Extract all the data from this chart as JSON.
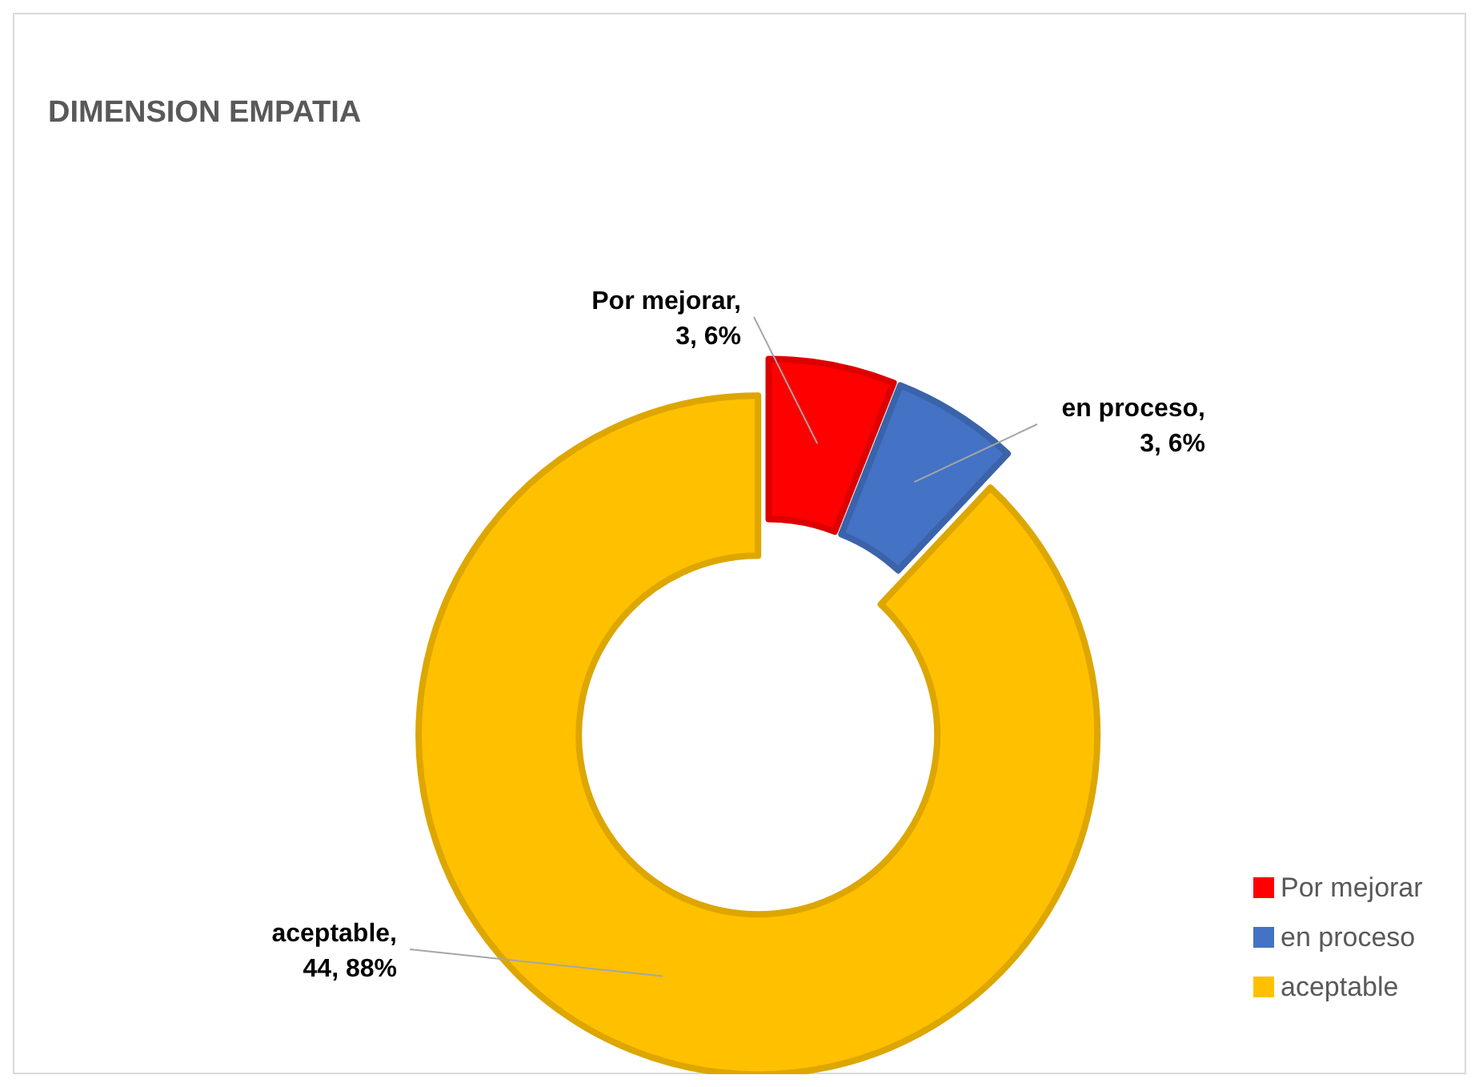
{
  "chart_data": {
    "type": "donut",
    "title": "DIMENSION EMPATIA",
    "categories": [
      "Por mejorar",
      "en proceso",
      "aceptable"
    ],
    "values": [
      3,
      3,
      44
    ],
    "colors": [
      "#ff0000",
      "#4472c4",
      "#ffc000"
    ],
    "value_labels": [
      "Por mejorar, 3, 6%",
      "en proceso, 3, 6%",
      "aceptable, 44, 88%"
    ],
    "legend": "bottom right"
  }
}
